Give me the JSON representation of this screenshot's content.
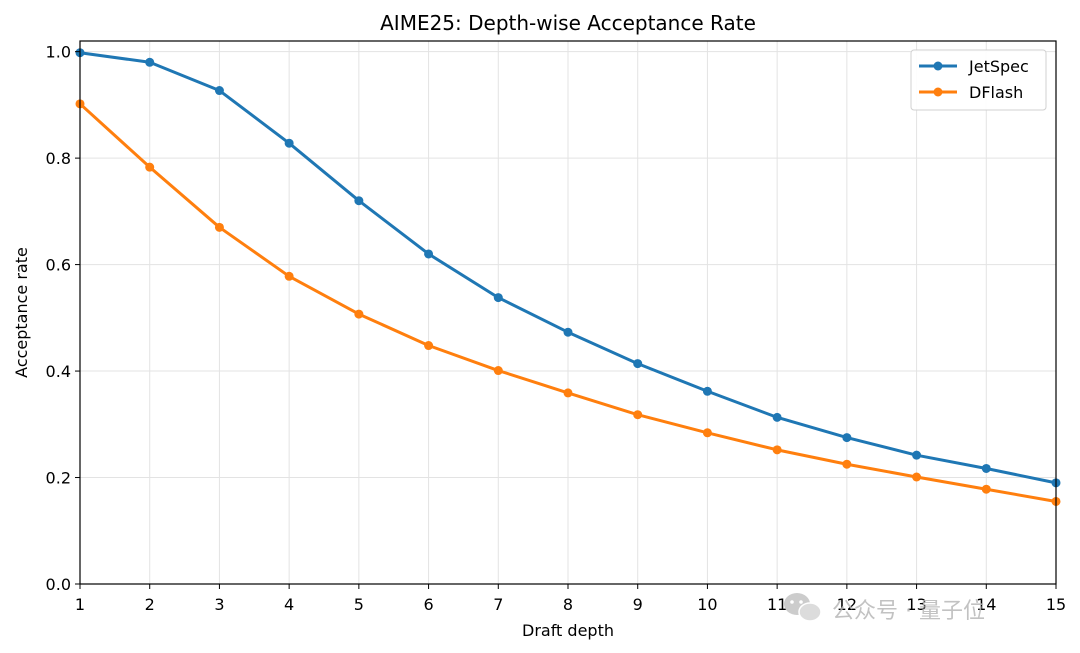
{
  "chart_data": {
    "type": "line",
    "title": "AIME25: Depth-wise Acceptance Rate",
    "xlabel": "Draft depth",
    "ylabel": "Acceptance rate",
    "x": [
      1,
      2,
      3,
      4,
      5,
      6,
      7,
      8,
      9,
      10,
      11,
      12,
      13,
      14,
      15
    ],
    "xlim": [
      1,
      15
    ],
    "ylim": [
      0,
      1.02
    ],
    "xticks": [
      "1",
      "2",
      "3",
      "4",
      "5",
      "6",
      "7",
      "8",
      "9",
      "10",
      "11",
      "12",
      "13",
      "14",
      "15"
    ],
    "yticks": [
      "0.0",
      "0.2",
      "0.4",
      "0.6",
      "0.8",
      "1.0"
    ],
    "grid": true,
    "legend_position": "top-right",
    "series": [
      {
        "name": "JetSpec",
        "color": "#1f77b4",
        "values": [
          0.998,
          0.98,
          0.927,
          0.828,
          0.72,
          0.62,
          0.538,
          0.473,
          0.414,
          0.362,
          0.313,
          0.275,
          0.242,
          0.217,
          0.19
        ]
      },
      {
        "name": "DFlash",
        "color": "#ff7f0e",
        "values": [
          0.902,
          0.783,
          0.67,
          0.578,
          0.507,
          0.448,
          0.401,
          0.359,
          0.318,
          0.284,
          0.252,
          0.225,
          0.201,
          0.178,
          0.155
        ]
      }
    ]
  },
  "watermark": {
    "text": "公众号 · 量子位",
    "icon": "wechat-icon"
  }
}
